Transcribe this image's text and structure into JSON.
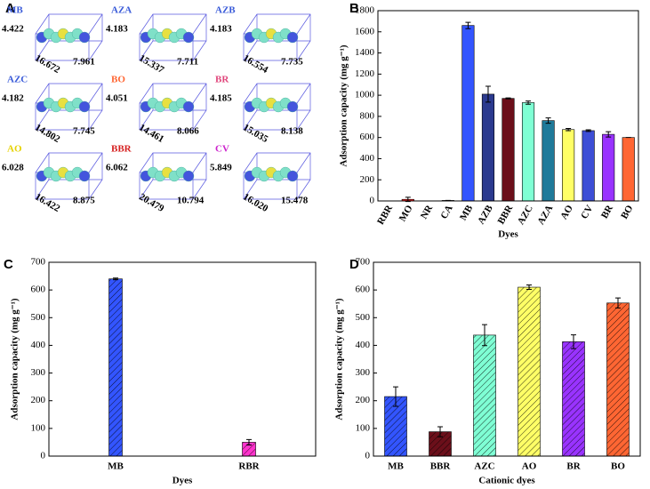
{
  "panel_a": {
    "label": "A",
    "molecules": [
      {
        "name": "MB",
        "color": "#3a5bd9",
        "height": "4.422",
        "length": "16.672",
        "width": "7.961"
      },
      {
        "name": "AZA",
        "color": "#3a5bd9",
        "height": "4.183",
        "length": "15.337",
        "width": "7.711"
      },
      {
        "name": "AZB",
        "color": "#3a5bd9",
        "height": "4.183",
        "length": "16.554",
        "width": "7.735"
      },
      {
        "name": "AZC",
        "color": "#3a5bd9",
        "height": "4.182",
        "length": "14.802",
        "width": "7.745"
      },
      {
        "name": "BO",
        "color": "#ff6633",
        "height": "4.051",
        "length": "14.461",
        "width": "8.066"
      },
      {
        "name": "BR",
        "color": "#e0457b",
        "height": "4.185",
        "length": "15.035",
        "width": "8.138"
      },
      {
        "name": "AO",
        "color": "#e6d200",
        "height": "6.028",
        "length": "16.422",
        "width": "8.875"
      },
      {
        "name": "BBR",
        "color": "#d62020",
        "height": "6.062",
        "length": "20.479",
        "width": "10.794"
      },
      {
        "name": "CV",
        "color": "#cc22cc",
        "height": "5.849",
        "length": "16.020",
        "width": "15.478"
      }
    ]
  },
  "chart_data": [
    {
      "type": "bar",
      "panel": "B",
      "xlabel": "Dyes",
      "ylabel": "Adsorption capacity (mg g⁻¹)",
      "categories": [
        "RBR",
        "MO",
        "NR",
        "CA",
        "MB",
        "AZB",
        "BBR",
        "AZC",
        "AZA",
        "AO",
        "CV",
        "BR",
        "BO"
      ],
      "values": [
        0,
        15,
        0,
        5,
        1660,
        1010,
        970,
        930,
        760,
        675,
        665,
        630,
        600
      ],
      "errors": [
        0,
        20,
        0,
        0,
        30,
        75,
        5,
        15,
        25,
        10,
        8,
        25,
        0
      ],
      "colors": [
        "#ff33cc",
        "#ff2222",
        "#888888",
        "#999999",
        "#3355ff",
        "#2b3a8f",
        "#6b0f1a",
        "#7fffd4",
        "#1f7a9a",
        "#ffff66",
        "#3d4ed6",
        "#9933ff",
        "#ff6633"
      ],
      "hatch": false,
      "ylim": [
        0,
        1800
      ],
      "yticks": [
        0,
        200,
        400,
        600,
        800,
        1000,
        1200,
        1400,
        1600,
        1800
      ]
    },
    {
      "type": "bar",
      "panel": "C",
      "xlabel": "Dyes",
      "ylabel": "Adsorption capacity (mg g⁻¹)",
      "categories": [
        "MB",
        "RBR"
      ],
      "values": [
        640,
        50
      ],
      "errors": [
        3,
        10
      ],
      "colors": [
        "#3355ff",
        "#ff33cc"
      ],
      "hatch": true,
      "ylim": [
        0,
        700
      ],
      "yticks": [
        0,
        100,
        200,
        300,
        400,
        500,
        600,
        700
      ]
    },
    {
      "type": "bar",
      "panel": "D",
      "xlabel": "Cationic dyes",
      "ylabel": "Adsorption capacity (mg g⁻¹)",
      "categories": [
        "MB",
        "BBR",
        "AZC",
        "AO",
        "BR",
        "BO"
      ],
      "values": [
        215,
        88,
        437,
        610,
        413,
        553
      ],
      "errors": [
        35,
        18,
        38,
        8,
        25,
        18
      ],
      "colors": [
        "#3355ff",
        "#6b0f1a",
        "#7fffd4",
        "#ffff66",
        "#9933ff",
        "#ff6633"
      ],
      "hatch": true,
      "ylim": [
        0,
        700
      ],
      "yticks": [
        0,
        100,
        200,
        300,
        400,
        500,
        600,
        700
      ]
    }
  ]
}
